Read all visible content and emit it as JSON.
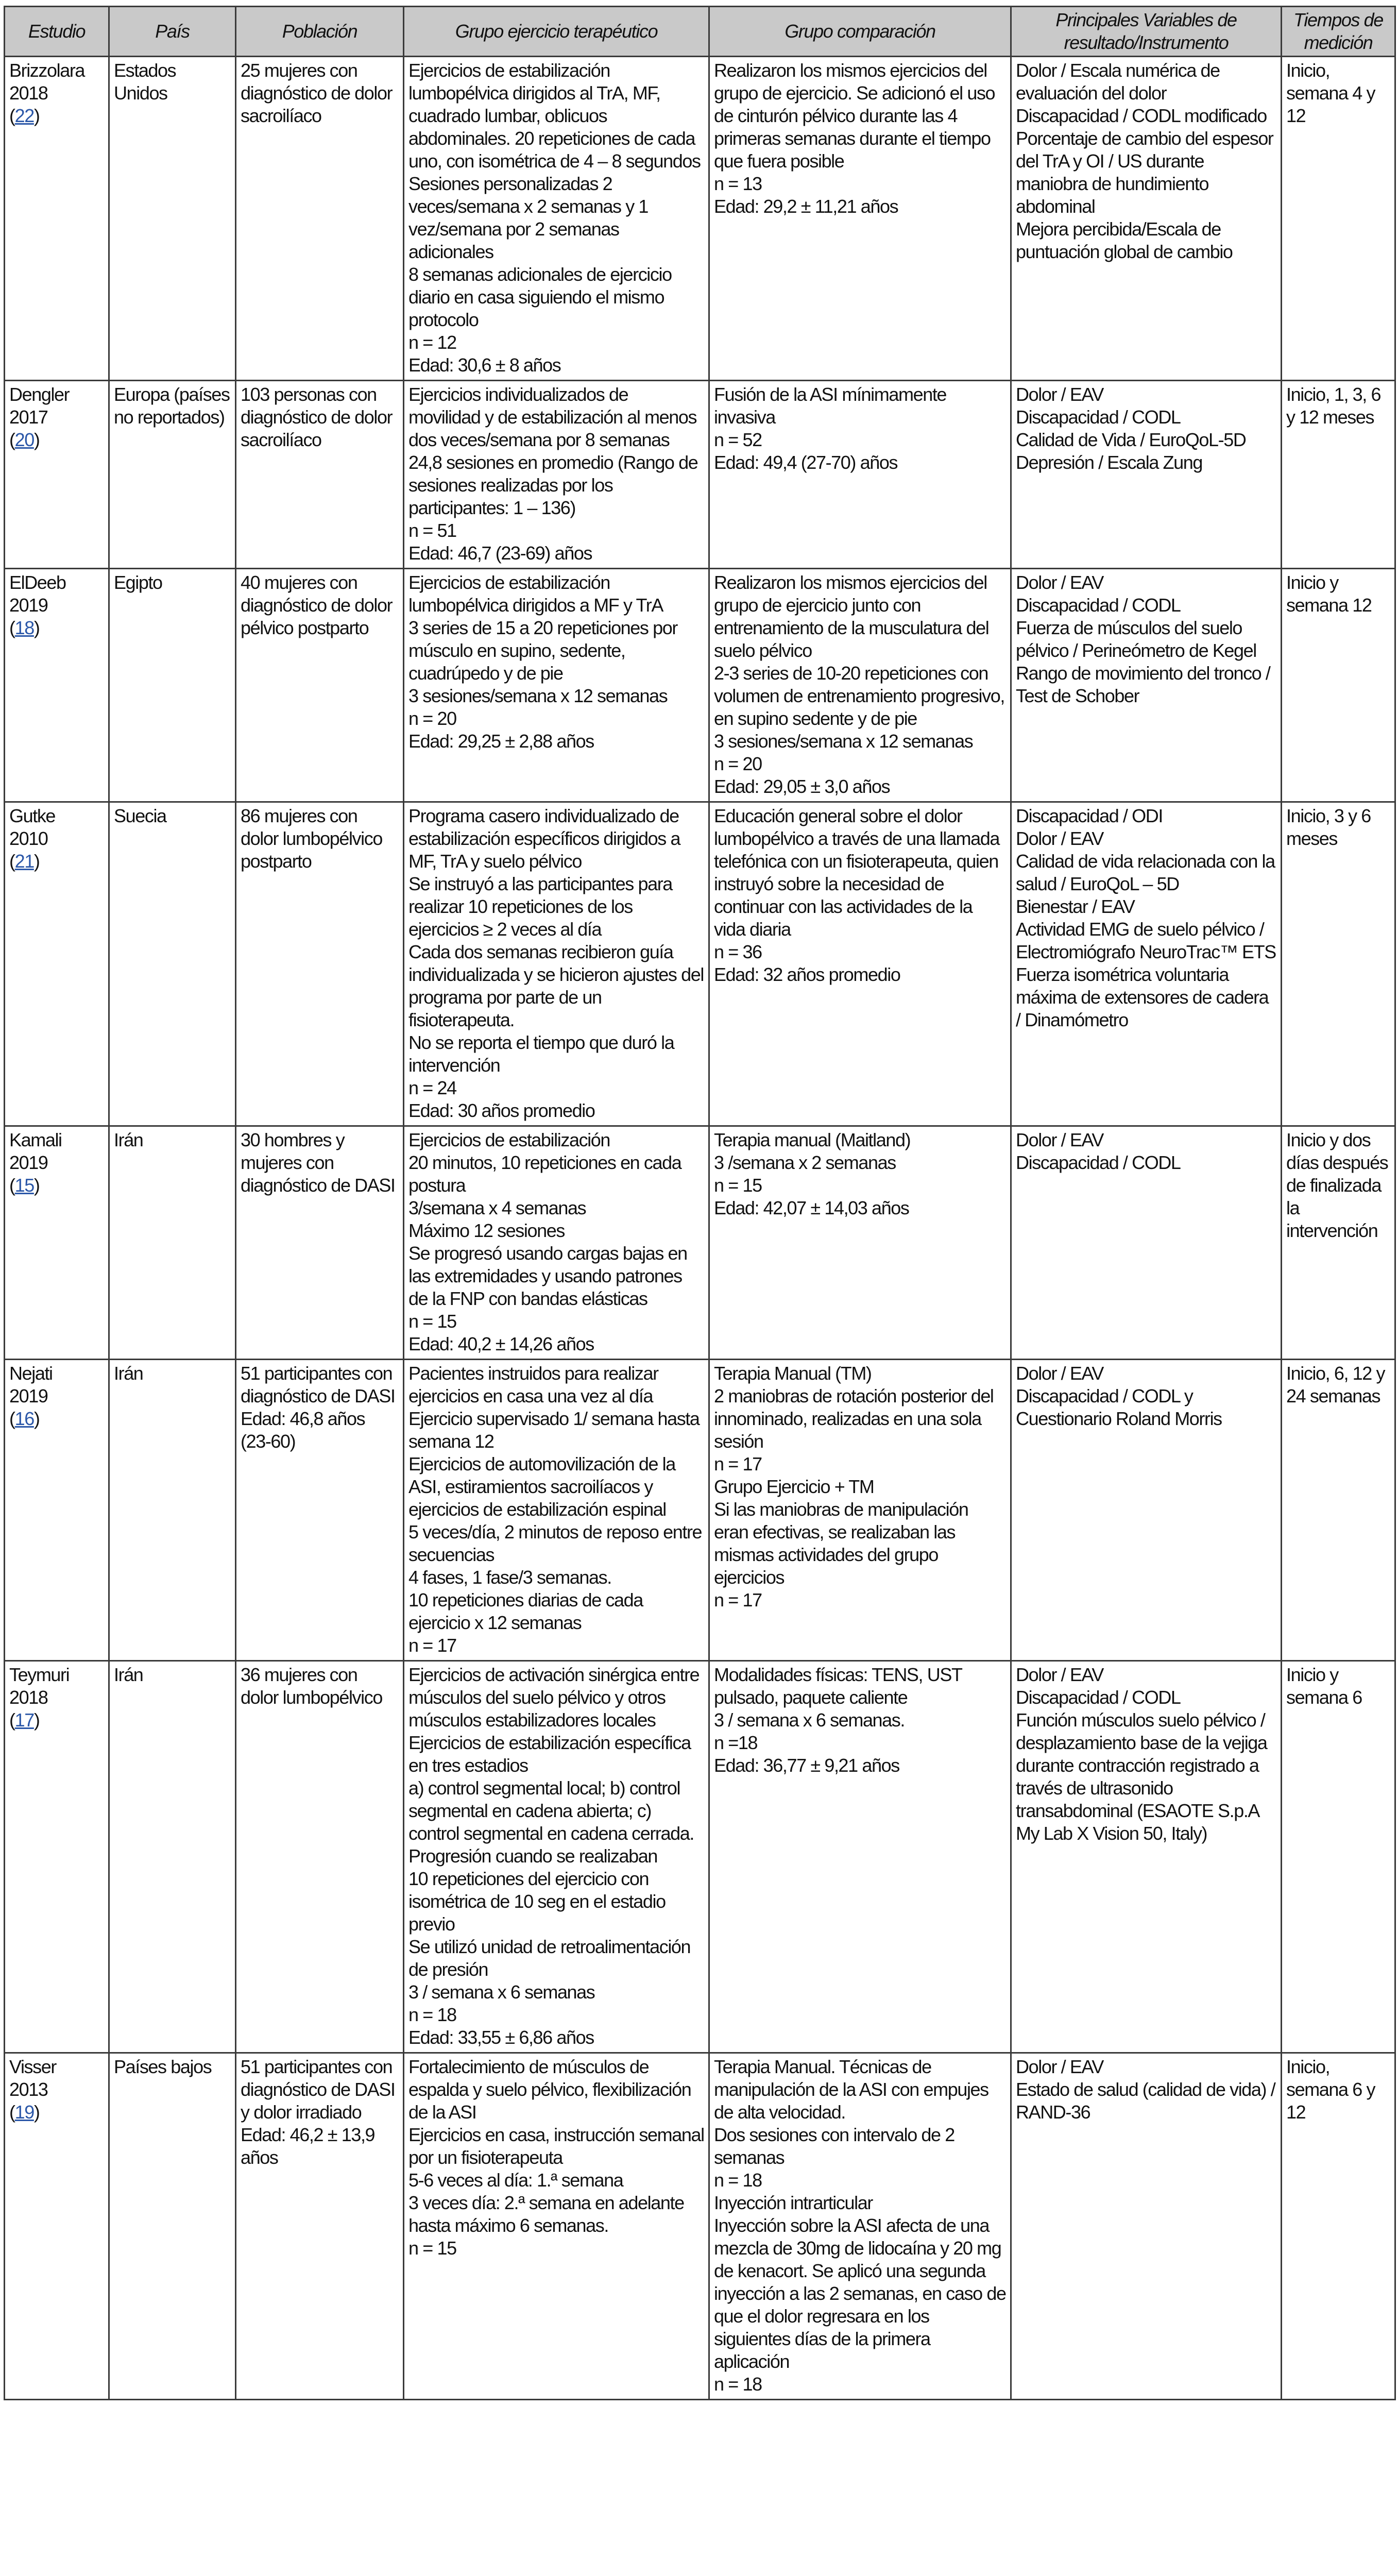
{
  "table": {
    "headers": [
      "Estudio",
      "País",
      "Población",
      "Grupo ejercicio terapéutico",
      "Grupo comparación",
      "Principales Variables de resultado/Instrumento",
      "Tiempos de medición"
    ],
    "link_color": "#2b57a8",
    "header_bg": "#c9c9c9",
    "rows": [
      {
        "author": "Brizzolara",
        "year": "2018",
        "ref": "22",
        "country": [
          "Estados Unidos"
        ],
        "population": [
          "25 mujeres con diagnóstico de dolor sacroilíaco"
        ],
        "exercise": [
          "Ejercicios de estabilización lumbopélvica dirigidos al TrA, MF, cuadrado lumbar, oblicuos abdominales. 20 repeticiones de cada uno, con isométrica de 4 – 8 segundos",
          "Sesiones personalizadas 2 veces/semana x 2 semanas y 1 vez/semana por 2 semanas adicionales",
          "8 semanas adicionales de ejercicio diario en casa siguiendo el mismo protocolo",
          "n = 12",
          "Edad: 30,6 ± 8 años"
        ],
        "comparison": [
          "Realizaron los mismos ejercicios del grupo de ejercicio. Se adicionó el uso de cinturón pélvico durante las 4 primeras semanas durante el tiempo que fuera posible",
          "n = 13",
          "Edad: 29,2 ± 11,21 años"
        ],
        "outcomes": [
          "Dolor / Escala numérica de evaluación del dolor",
          "Discapacidad / CODL modificado",
          "Porcentaje de cambio del espesor del TrA y OI / US durante maniobra de hundimiento abdominal",
          "Mejora percibida/Escala de puntuación global de cambio"
        ],
        "timing": [
          "Inicio, semana 4 y 12"
        ]
      },
      {
        "author": "Dengler",
        "year": "2017",
        "ref": "20",
        "country": [
          "Europa (países no reportados)"
        ],
        "population": [
          "103 personas con diagnóstico de dolor sacroilíaco"
        ],
        "exercise": [
          "Ejercicios individualizados de movilidad y de estabilización al menos dos veces/semana por 8 semanas",
          "24,8 sesiones en promedio (Rango de sesiones realizadas por los participantes: 1 – 136)",
          "n = 51",
          "Edad: 46,7 (23-69) años"
        ],
        "comparison": [
          "Fusión de la ASI mínimamente invasiva",
          "n = 52",
          "Edad: 49,4 (27-70) años"
        ],
        "outcomes": [
          "Dolor / EAV",
          "Discapacidad / CODL",
          "Calidad de Vida / EuroQoL-5D",
          "Depresión / Escala Zung"
        ],
        "timing": [
          "Inicio, 1, 3, 6 y 12 meses"
        ]
      },
      {
        "author": "ElDeeb",
        "year": "2019",
        "ref": "18",
        "country": [
          "Egipto"
        ],
        "population": [
          "40 mujeres con diagnóstico de dolor pélvico postparto"
        ],
        "exercise": [
          "Ejercicios de estabilización lumbopélvica dirigidos a MF y TrA",
          "3 series de 15 a 20 repeticiones por músculo en supino, sedente, cuadrúpedo y de pie",
          "3 sesiones/semana x 12 semanas",
          "n = 20",
          "Edad: 29,25 ± 2,88 años"
        ],
        "comparison": [
          "Realizaron los mismos ejercicios del grupo de ejercicio junto con entrenamiento de la musculatura del suelo pélvico",
          "2-3 series de 10-20 repeticiones con volumen de entrenamiento progresivo, en supino sedente y de pie",
          "3 sesiones/semana x 12 semanas",
          "n = 20",
          "Edad: 29,05 ± 3,0 años"
        ],
        "outcomes": [
          "Dolor / EAV",
          "Discapacidad / CODL",
          "Fuerza de músculos del suelo pélvico / Perineómetro de Kegel",
          "Rango de movimiento del tronco / Test de Schober"
        ],
        "timing": [
          "Inicio y semana 12"
        ]
      },
      {
        "author": "Gutke",
        "year": "2010",
        "ref": "21",
        "country": [
          "Suecia"
        ],
        "population": [
          "86 mujeres con dolor lumbopélvico postparto"
        ],
        "exercise": [
          "Programa casero individualizado de estabilización específicos dirigidos a MF, TrA y suelo pélvico",
          "Se instruyó a las participantes para realizar 10 repeticiones de los ejercicios ≥ 2 veces al día",
          "Cada dos semanas recibieron guía individualizada y se hicieron ajustes del programa por parte de un fisioterapeuta.",
          "No se reporta el tiempo que duró la intervención",
          "n = 24",
          "Edad: 30 años promedio"
        ],
        "comparison": [
          "Educación general sobre el dolor lumbopélvico a través de una llamada telefónica con un fisioterapeuta, quien instruyó sobre la necesidad de continuar con las actividades de la vida diaria",
          "n = 36",
          "Edad: 32 años promedio"
        ],
        "outcomes": [
          "Discapacidad / ODI",
          "Dolor / EAV",
          "Calidad de vida relacionada con la salud / EuroQoL – 5D",
          "Bienestar / EAV",
          "Actividad EMG de suelo pélvico / Electromiógrafo NeuroTrac™ ETS",
          "Fuerza isométrica voluntaria máxima de extensores de cadera / Dinamómetro"
        ],
        "timing": [
          "Inicio, 3 y 6 meses"
        ]
      },
      {
        "author": "Kamali",
        "year": "2019",
        "ref": "15",
        "country": [
          "Irán"
        ],
        "population": [
          "30 hombres y mujeres con diagnóstico de DASI"
        ],
        "exercise": [
          "Ejercicios de estabilización",
          "20 minutos, 10 repeticiones en cada postura",
          "3/semana x 4 semanas",
          "Máximo 12 sesiones",
          "Se progresó usando cargas bajas en las extremidades y usando patrones de la FNP con bandas elásticas",
          "n = 15",
          "Edad: 40,2 ± 14,26 años"
        ],
        "comparison": [
          "Terapia manual (Maitland)",
          "3 /semana x 2 semanas",
          "n = 15",
          "Edad: 42,07 ± 14,03 años"
        ],
        "outcomes": [
          "Dolor / EAV",
          "Discapacidad / CODL"
        ],
        "timing": [
          "Inicio y dos días después de finalizada la intervención"
        ]
      },
      {
        "author": "Nejati",
        "year": "2019",
        "ref": "16",
        "country": [
          "Irán"
        ],
        "population": [
          "51 participantes con diagnóstico de DASI",
          "Edad: 46,8 años (23-60)"
        ],
        "exercise": [
          "Pacientes instruidos para realizar ejercicios en casa una vez al día",
          "Ejercicio supervisado 1/ semana hasta semana 12",
          "Ejercicios de automovilización de la ASI, estiramientos sacroilíacos y ejercicios de estabilización espinal",
          "5 veces/día, 2 minutos de reposo entre secuencias",
          "4 fases, 1 fase/3 semanas.",
          "10 repeticiones diarias de cada ejercicio x 12 semanas",
          "n = 17"
        ],
        "comparison": [
          "Terapia Manual (TM)",
          "2 maniobras de rotación posterior del innominado, realizadas en una sola sesión",
          "n = 17",
          "Grupo Ejercicio + TM",
          "Si las maniobras de manipulación eran efectivas, se realizaban las mismas actividades del grupo ejercicios",
          "n = 17"
        ],
        "outcomes": [
          "Dolor / EAV",
          "Discapacidad / CODL y Cuestionario Roland Morris"
        ],
        "timing": [
          "Inicio, 6, 12 y 24 semanas"
        ]
      },
      {
        "author": "Teymuri",
        "year": "2018",
        "ref": "17",
        "country": [
          "Irán"
        ],
        "population": [
          "36 mujeres con dolor lumbopélvico"
        ],
        "exercise": [
          "Ejercicios de activación sinérgica entre músculos del suelo pélvico y otros músculos estabilizadores locales",
          "Ejercicios de estabilización específica en tres estadios",
          "a) control segmental local; b) control segmental en cadena abierta; c) control segmental en cadena cerrada. Progresión cuando se realizaban",
          "10 repeticiones del ejercicio con isométrica de 10 seg en el estadio previo",
          "Se utilizó unidad de retroalimentación de presión",
          "3 / semana x 6 semanas",
          "n = 18",
          "Edad: 33,55 ± 6,86 años"
        ],
        "comparison": [
          "Modalidades físicas: TENS, UST pulsado, paquete caliente",
          "3 / semana x 6 semanas.",
          "n =18",
          "Edad: 36,77 ± 9,21 años"
        ],
        "outcomes": [
          "Dolor / EAV",
          "Discapacidad / CODL",
          "Función músculos suelo pélvico / desplazamiento base de la vejiga durante contracción registrado a través de ultrasonido transabdominal (ESAOTE S.p.A My Lab X Vision 50, Italy)"
        ],
        "timing": [
          "Inicio y semana 6"
        ]
      },
      {
        "author": "Visser",
        "year": "2013",
        "ref": "19",
        "country": [
          "Países bajos"
        ],
        "population": [
          "51 participantes con diagnóstico de DASI y dolor irradiado",
          "Edad: 46,2 ± 13,9 años"
        ],
        "exercise": [
          "Fortalecimiento de músculos de espalda y suelo pélvico, flexibilización de la ASI",
          "Ejercicios en casa, instrucción semanal por un fisioterapeuta",
          "5-6 veces al día: 1.ª semana",
          "3 veces día: 2.ª semana en adelante hasta máximo 6 semanas.",
          "n = 15"
        ],
        "comparison": [
          "Terapia Manual. Técnicas de manipulación de la ASI con empujes de alta velocidad.",
          "Dos sesiones con intervalo de 2 semanas",
          "n = 18",
          "Inyección intrarticular",
          "Inyección sobre la ASI afecta de una mezcla de 30mg de lidocaína y 20 mg de kenacort. Se aplicó una segunda inyección a las 2 semanas, en caso de que el dolor regresara en los siguientes días de la primera aplicación",
          "n = 18"
        ],
        "outcomes": [
          "Dolor / EAV",
          "Estado de salud (calidad de vida) / RAND-36"
        ],
        "timing": [
          "Inicio, semana 6 y 12"
        ]
      }
    ]
  }
}
